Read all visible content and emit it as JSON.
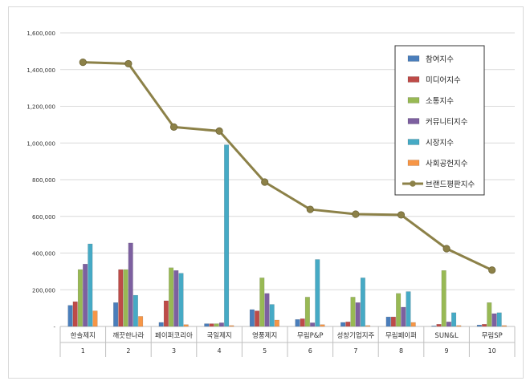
{
  "chart_data": {
    "type": "bar",
    "combo": "grouped bars with line overlay",
    "categories": [
      "한솔제지",
      "깨끗한나라",
      "페이퍼코리아",
      "국일제지",
      "영풍제지",
      "무림P&P",
      "성창기업지주",
      "무림페이퍼",
      "SUN&L",
      "무림SP"
    ],
    "ranks": [
      "1",
      "2",
      "3",
      "4",
      "5",
      "6",
      "7",
      "8",
      "9",
      "10"
    ],
    "ylim": [
      0,
      1600000
    ],
    "yticks": [
      0,
      200000,
      400000,
      600000,
      800000,
      1000000,
      1200000,
      1400000,
      1600000
    ],
    "ytick_labels": [
      "-",
      "200,000",
      "400,000",
      "600,000",
      "800,000",
      "1,000,000",
      "1,200,000",
      "1,400,000",
      "1,600,000"
    ],
    "grid": true,
    "legend_position": "right",
    "series": [
      {
        "name": "참여지수",
        "type": "bar",
        "color": "#4a7ebb",
        "values": [
          115000,
          130000,
          22000,
          15000,
          92000,
          38000,
          22000,
          52000,
          3000,
          8000
        ]
      },
      {
        "name": "미디어지수",
        "type": "bar",
        "color": "#be4b48",
        "values": [
          135000,
          310000,
          140000,
          15000,
          85000,
          42000,
          25000,
          52000,
          12000,
          12000
        ]
      },
      {
        "name": "소통지수",
        "type": "bar",
        "color": "#98b954",
        "values": [
          310000,
          310000,
          320000,
          15000,
          265000,
          160000,
          160000,
          180000,
          305000,
          130000
        ]
      },
      {
        "name": "커뮤니티지수",
        "type": "bar",
        "color": "#7d60a0",
        "values": [
          340000,
          455000,
          305000,
          20000,
          180000,
          20000,
          130000,
          105000,
          25000,
          70000
        ]
      },
      {
        "name": "시장지수",
        "type": "bar",
        "color": "#46aac5",
        "values": [
          450000,
          170000,
          290000,
          990000,
          120000,
          365000,
          265000,
          190000,
          75000,
          75000
        ]
      },
      {
        "name": "사회공헌지수",
        "type": "bar",
        "color": "#f79646",
        "values": [
          85000,
          55000,
          10000,
          5000,
          35000,
          10000,
          5000,
          22000,
          5000,
          5000
        ]
      },
      {
        "name": "브랜드평판지수",
        "type": "line",
        "color": "#8c8148",
        "values": [
          1440000,
          1432000,
          1087000,
          1065000,
          787000,
          638000,
          612000,
          608000,
          424000,
          307000
        ]
      }
    ]
  }
}
